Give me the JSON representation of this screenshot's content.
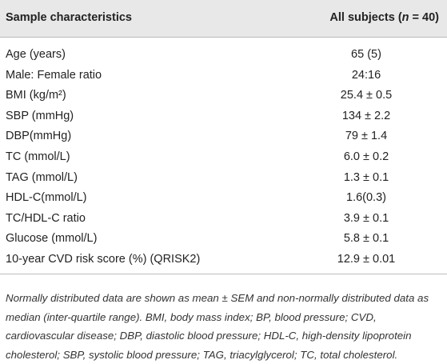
{
  "table": {
    "header": [
      "Sample characteristics",
      [
        "All subjects (",
        "n",
        " = 40)"
      ]
    ],
    "rows": [
      [
        "Age (years)",
        "65 (5)"
      ],
      [
        "Male: Female ratio",
        "24:16"
      ],
      [
        "BMI (kg/m²)",
        "25.4 ± 0.5"
      ],
      [
        "SBP (mmHg)",
        "134 ± 2.2"
      ],
      [
        "DBP(mmHg)",
        "79 ± 1.4"
      ],
      [
        "TC (mmol/L)",
        "6.0 ± 0.2"
      ],
      [
        "TAG (mmol/L)",
        "1.3 ± 0.1"
      ],
      [
        "HDL-C(mmol/L)",
        "1.6(0.3)"
      ],
      [
        "TC/HDL-C ratio",
        "3.9 ± 0.1"
      ],
      [
        "Glucose (mmol/L)",
        "5.8 ± 0.1"
      ],
      [
        "10-year CVD risk score (%) (QRISK2)",
        "12.9 ± 0.01"
      ]
    ],
    "footnote": "Normally distributed data are shown as mean ± SEM and non-normally distributed data as median (inter-quartile range). BMI, body mass index; BP, blood pressure; CVD, cardiovascular disease; DBP, diastolic blood pressure; HDL-C, high-density lipoprotein cholesterol; SBP, systolic blood pressure; TAG, triacylglycerol; TC, total cholesterol."
  }
}
